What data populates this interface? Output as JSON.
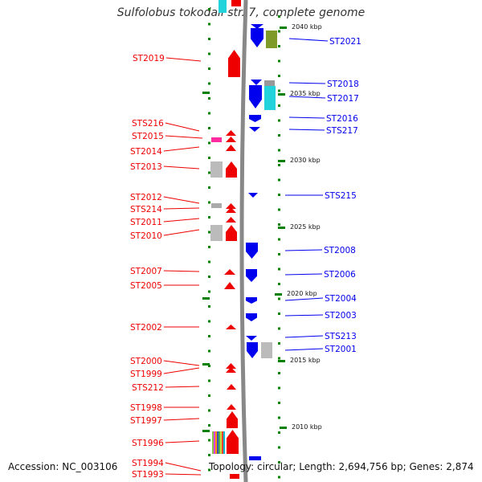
{
  "title": "Sulfolobus tokodaii str. 7, complete genome",
  "accession": "Accession: NC_003106",
  "topology": "Topology: circular; Length: 2,694,756 bp; Genes: 2,874",
  "colors": {
    "forward": "#ee0000",
    "reverse": "#0000ee",
    "backbone": "#888888",
    "tick": "#008000"
  },
  "scale_labels": [
    "2040 kbp",
    "2035 kbp",
    "2030 kbp",
    "2025 kbp",
    "2020 kbp",
    "2015 kbp",
    "2010 kbp"
  ],
  "left_genes": [
    "ST2019",
    "STS216",
    "ST2015",
    "ST2014",
    "ST2013",
    "ST2012",
    "STS214",
    "ST2011",
    "ST2010",
    "ST2007",
    "ST2005",
    "ST2002",
    "ST2000",
    "ST1999",
    "STS212",
    "ST1998",
    "ST1997",
    "ST1996",
    "ST1994",
    "ST1993"
  ],
  "right_genes": [
    "ST2021",
    "ST2018",
    "ST2017",
    "ST2016",
    "STS217",
    "STS215",
    "ST2008",
    "ST2006",
    "ST2004",
    "ST2003",
    "STS213",
    "ST2001"
  ]
}
